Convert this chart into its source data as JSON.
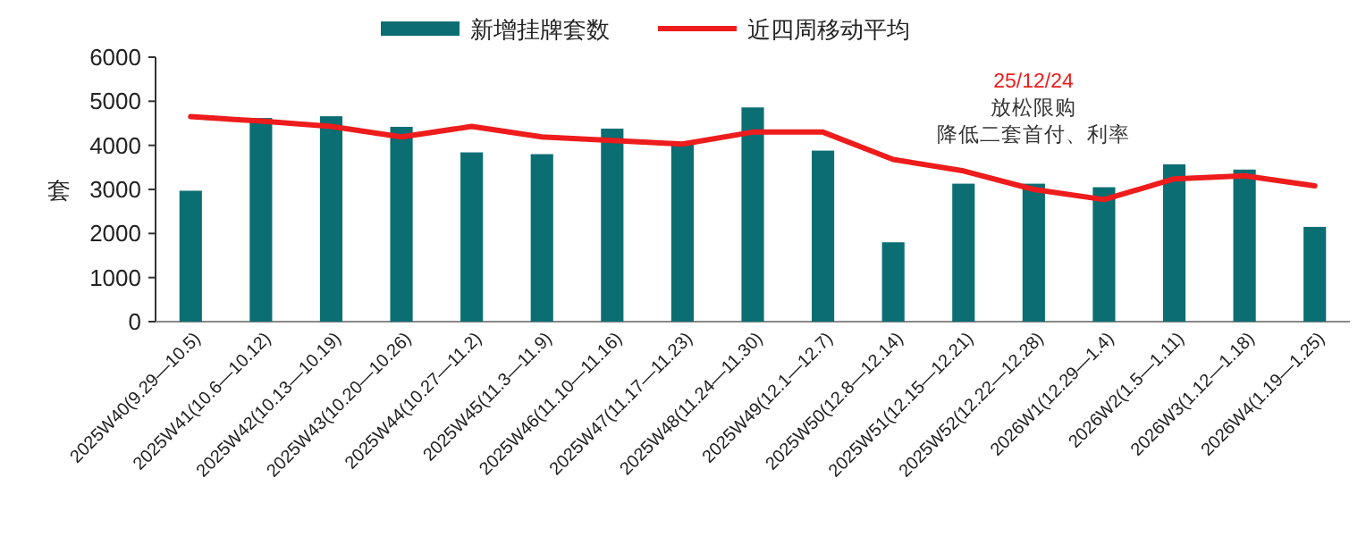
{
  "chart_data": {
    "type": "bar",
    "ylabel": "套",
    "ylim": [
      0,
      6000
    ],
    "yticks": [
      0,
      1000,
      2000,
      3000,
      4000,
      5000,
      6000
    ],
    "grid": false,
    "legend": "top",
    "categories": [
      "2025W40(9.29—10.5)",
      "2025W41(10.6—10.12)",
      "2025W42(10.13—10.19)",
      "2025W43(10.20—10.26)",
      "2025W44(10.27—11.2)",
      "2025W45(11.3—11.9)",
      "2025W46(11.10—11.16)",
      "2025W47(11.17—11.23)",
      "2025W48(11.24—11.30)",
      "2025W49(12.1—12.7)",
      "2025W50(12.8—12.14)",
      "2025W51(12.15—12.21)",
      "2025W52(12.22—12.28)",
      "2026W1(12.29—1.4)",
      "2026W2(1.5—1.11)",
      "2026W3(1.12—1.18)",
      "2026W4(1.19—1.25)"
    ],
    "series": [
      {
        "name": "新增挂牌套数",
        "color": "#0b6e73",
        "values": [
          2970,
          4620,
          4660,
          4420,
          3840,
          3800,
          4380,
          4050,
          4860,
          3880,
          1800,
          3130,
          3130,
          3050,
          3570,
          3450,
          2150
        ]
      },
      {
        "name": "近四周移动平均",
        "type": "line",
        "color": "#ee1c1c",
        "marker": "none",
        "values": [
          4650,
          4550,
          4430,
          4190,
          4430,
          4190,
          4110,
          4030,
          4300,
          4300,
          3680,
          3420,
          3000,
          2770,
          3240,
          3310,
          3080
        ]
      }
    ],
    "annotations": [
      "25/12/24",
      "放松限购",
      "降低二套首付、利率"
    ]
  }
}
